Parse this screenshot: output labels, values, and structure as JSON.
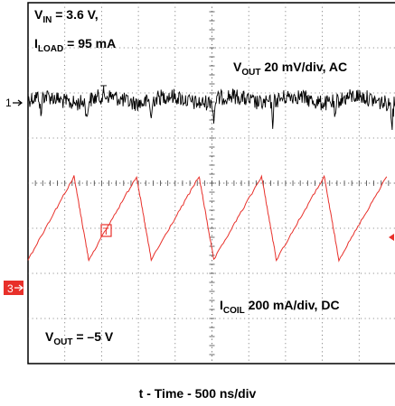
{
  "chart_data": {
    "type": "line",
    "xlabel": "t - Time - 500 ns/div",
    "annotations": {
      "vin_main": "V",
      "vin_sub": "IN",
      "vin_value": " = 3.6 V,",
      "iload_main": "I",
      "iload_sub": "LOAD",
      "iload_value": " = 95 mA",
      "vout_ch_main": "V",
      "vout_ch_sub": "OUT",
      "vout_ch_value": " 20 mV/div, AC",
      "icoil_main": "I",
      "icoil_sub": "COIL",
      "icoil_value": " 200 mA/div, DC",
      "vout_main": "V",
      "vout_sub": "OUT",
      "vout_value": " = –5 V"
    },
    "markers": {
      "ch1": "1",
      "ch3": "3",
      "trigger": "T"
    },
    "x_divisions": 10,
    "y_divisions": 8,
    "series": [
      {
        "color": "#000000",
        "ripple_period_div": 1.7,
        "baseline_div": 2.15,
        "noise_pp_div": 0.35,
        "spikes_div": [
          0.35,
          1.6,
          3.35,
          5.05,
          6.65,
          8.35,
          9.9
        ]
      },
      {
        "color": "#e8302a",
        "ripple_period_div": 1.7,
        "peak_div": 3.85,
        "valley_div": 5.7,
        "peaks_x_div": [
          1.25,
          2.95,
          4.65,
          6.35,
          8.05,
          9.75
        ],
        "valleys_x_div": [
          0.0,
          1.65,
          3.35,
          5.05,
          6.75,
          8.45
        ]
      }
    ],
    "colors": {
      "ch3_marker_bg": "#e8302a",
      "ch3_marker_fg": "#ffffff",
      "ch3_trigger": "#e8302a"
    }
  }
}
